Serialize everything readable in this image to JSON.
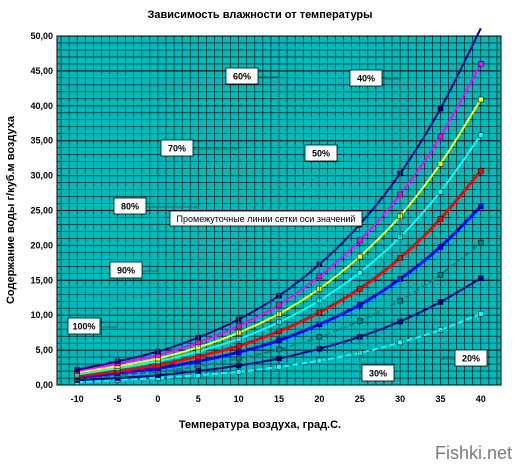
{
  "chart_data": {
    "type": "line",
    "title": "Зависимость влажности от температуры",
    "xlabel": "Температура воздуха, град.С.",
    "ylabel": "Содержание воды г/куб.м воздуха",
    "x": [
      -10,
      -5,
      0,
      5,
      10,
      15,
      20,
      25,
      30,
      35,
      40
    ],
    "x_ticks": [
      "-10",
      "-5",
      "0",
      "5",
      "10",
      "15",
      "20",
      "25",
      "30",
      "35",
      "40"
    ],
    "y_ticks": [
      "0,00",
      "5,00",
      "10,00",
      "15,00",
      "20,00",
      "25,00",
      "30,00",
      "35,00",
      "40,00",
      "45,00",
      "50,00"
    ],
    "ylim": [
      0,
      50
    ],
    "xlim": [
      -12.5,
      42.5
    ],
    "grid": true,
    "background": "#00bbbb",
    "grid_color": "#000000",
    "series": [
      {
        "name": "100%",
        "color": "#000080",
        "values": [
          2.2,
          3.4,
          4.8,
          6.8,
          9.4,
          12.8,
          17.3,
          23.0,
          30.3,
          39.6,
          51.1
        ]
      },
      {
        "name": "90%",
        "color": "#ff00ff",
        "values": [
          2.0,
          3.1,
          4.3,
          6.1,
          8.5,
          11.5,
          15.6,
          20.7,
          27.3,
          35.6,
          46.0
        ]
      },
      {
        "name": "80%",
        "color": "#ffff00",
        "values": [
          1.8,
          2.7,
          3.8,
          5.4,
          7.5,
          10.2,
          13.8,
          18.4,
          24.2,
          31.7,
          40.9
        ]
      },
      {
        "name": "70%",
        "color": "#00ffff",
        "values": [
          1.5,
          2.4,
          3.4,
          4.8,
          6.6,
          9.0,
          12.1,
          16.1,
          21.2,
          27.7,
          35.8
        ]
      },
      {
        "name": "60%",
        "color": "#ff0000",
        "values": [
          1.3,
          2.0,
          2.9,
          4.1,
          5.6,
          7.7,
          10.4,
          13.8,
          18.2,
          23.8,
          30.7
        ]
      },
      {
        "name": "50%",
        "color": "#0000ff",
        "values": [
          1.1,
          1.7,
          2.4,
          3.4,
          4.7,
          6.4,
          8.7,
          11.5,
          15.2,
          19.8,
          25.6
        ]
      },
      {
        "name": "",
        "color": "#008080",
        "values": [
          0.9,
          1.4,
          1.9,
          2.7,
          3.8,
          5.1,
          6.9,
          9.2,
          12.1,
          15.8,
          20.4
        ]
      },
      {
        "name": "",
        "color": "#000080",
        "values": [
          0.7,
          1.0,
          1.4,
          2.0,
          2.8,
          3.8,
          5.2,
          6.9,
          9.1,
          11.9,
          15.3
        ]
      },
      {
        "name": "",
        "color": "#00ffff",
        "values": [
          0.4,
          0.7,
          1.0,
          1.4,
          1.9,
          2.6,
          3.5,
          4.6,
          6.1,
          7.9,
          10.2
        ]
      }
    ],
    "labels": [
      {
        "text": "100%",
        "series": 0
      },
      {
        "text": "90%",
        "series": 1
      },
      {
        "text": "80%",
        "series": 2
      },
      {
        "text": "70%",
        "series": 3
      },
      {
        "text": "60%",
        "series": 4
      },
      {
        "text": "50%",
        "series": 5
      },
      {
        "text": "40%",
        "series": 6
      },
      {
        "text": "30%",
        "series": 7
      },
      {
        "text": "20%",
        "series": 8
      }
    ],
    "annotation": "Промежуточные линии сетки оси значений"
  },
  "watermark": "Fishki.net"
}
